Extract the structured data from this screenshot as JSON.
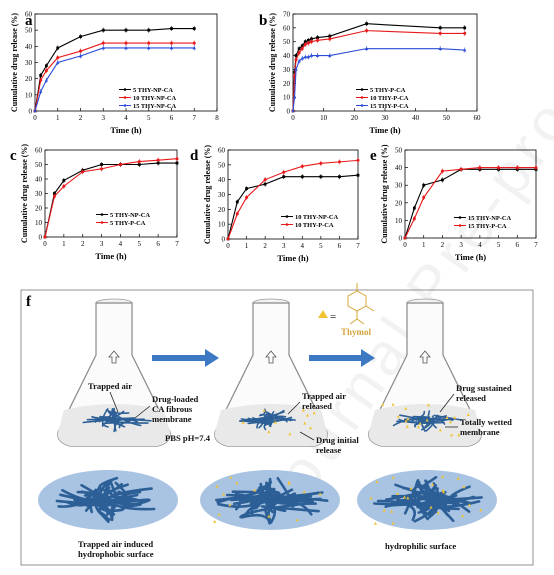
{
  "panels": [
    {
      "letter": "a",
      "xlabel": "Time (h)",
      "ylabel": "Cumulative drug release (%)",
      "xlim": [
        0,
        8
      ],
      "ylim": [
        0,
        60
      ],
      "xticks": [
        0,
        1,
        2,
        3,
        4,
        5,
        6,
        7,
        8
      ],
      "yticks": [
        0,
        10,
        20,
        30,
        40,
        50,
        60
      ]
    },
    {
      "letter": "b",
      "xlabel": "Time (h)",
      "ylabel": "Cumulative drug release (%)",
      "xlim": [
        0,
        60
      ],
      "ylim": [
        0,
        70
      ],
      "xticks": [
        0,
        10,
        20,
        30,
        40,
        50,
        60
      ],
      "yticks": [
        0,
        10,
        20,
        30,
        40,
        50,
        60,
        70
      ]
    },
    {
      "letter": "c",
      "xlabel": "Time (h)",
      "ylabel": "Cumulative drug release (%)",
      "xlim": [
        0,
        7
      ],
      "ylim": [
        0,
        60
      ],
      "xticks": [
        0,
        1,
        2,
        3,
        4,
        5,
        6,
        7
      ],
      "yticks": [
        0,
        10,
        20,
        30,
        40,
        50,
        60
      ]
    },
    {
      "letter": "d",
      "xlabel": "Time (h)",
      "ylabel": "Cumulative drug release (%)",
      "xlim": [
        0,
        7
      ],
      "ylim": [
        0,
        60
      ],
      "xticks": [
        0,
        1,
        2,
        3,
        4,
        5,
        6,
        7
      ],
      "yticks": [
        0,
        10,
        20,
        30,
        40,
        50,
        60
      ]
    },
    {
      "letter": "e",
      "xlabel": "Time (h)",
      "ylabel": "Cumulative drug release (%)",
      "xlim": [
        0,
        7
      ],
      "ylim": [
        0,
        50
      ],
      "xticks": [
        0,
        1,
        2,
        3,
        4,
        5,
        6,
        7
      ],
      "yticks": [
        0,
        10,
        20,
        30,
        40,
        50
      ]
    }
  ],
  "chart_data": [
    {
      "type": "line",
      "panel": "a",
      "x": [
        0,
        0.25,
        0.5,
        1,
        2,
        3,
        4,
        5,
        6,
        7
      ],
      "series": [
        {
          "name": "5 THY-NP-CA",
          "color": "#000000",
          "marker": "square",
          "values": [
            0,
            22,
            28,
            39,
            46,
            50,
            50,
            50,
            51,
            51
          ]
        },
        {
          "name": "10 THY-NP-CA",
          "color": "#e8191b",
          "marker": "circle",
          "values": [
            0,
            19,
            25,
            33,
            37,
            42,
            42,
            42,
            42,
            42
          ]
        },
        {
          "name": "15 THY-NP-CA",
          "color": "#2a4cd7",
          "marker": "triangle",
          "values": [
            0,
            12,
            19,
            30,
            34,
            39,
            39,
            39,
            39,
            39
          ]
        }
      ]
    },
    {
      "type": "line",
      "panel": "b",
      "x": [
        0,
        0.5,
        1,
        2,
        3,
        4,
        5,
        6,
        8,
        12,
        24,
        48,
        56
      ],
      "series": [
        {
          "name": "5 THY-P-CA",
          "color": "#000000",
          "marker": "square",
          "values": [
            0,
            28,
            40,
            45,
            47,
            50,
            51,
            52,
            53,
            54,
            63,
            60,
            60
          ]
        },
        {
          "name": "10 THY-P-CA",
          "color": "#e8191b",
          "marker": "circle",
          "values": [
            0,
            25,
            37,
            42,
            45,
            48,
            49,
            50,
            51,
            52,
            58,
            56,
            56
          ]
        },
        {
          "name": "15 THY-P-CA",
          "color": "#2a4cd7",
          "marker": "triangle",
          "values": [
            0,
            10,
            30,
            36,
            38,
            39,
            39,
            40,
            40,
            40,
            45,
            45,
            44
          ]
        }
      ]
    },
    {
      "type": "line",
      "panel": "c",
      "x": [
        0,
        0.5,
        1,
        2,
        3,
        4,
        5,
        6,
        7
      ],
      "series": [
        {
          "name": "5 THY-NP-CA",
          "color": "#000000",
          "marker": "square",
          "values": [
            0,
            30,
            39,
            46,
            50,
            50,
            50,
            51,
            51
          ]
        },
        {
          "name": "5 THY-P-CA",
          "color": "#e8191b",
          "marker": "circle",
          "values": [
            0,
            28,
            35,
            45,
            47,
            50,
            52,
            53,
            54
          ]
        }
      ]
    },
    {
      "type": "line",
      "panel": "d",
      "x": [
        0,
        0.5,
        1,
        2,
        3,
        4,
        5,
        6,
        7
      ],
      "series": [
        {
          "name": "10 THY-NP-CA",
          "color": "#000000",
          "marker": "square",
          "values": [
            0,
            25,
            34,
            37,
            42,
            42,
            42,
            42,
            43
          ]
        },
        {
          "name": "10 THY-P-CA",
          "color": "#e8191b",
          "marker": "circle",
          "values": [
            0,
            17,
            28,
            40,
            45,
            49,
            51,
            52,
            53
          ]
        }
      ]
    },
    {
      "type": "line",
      "panel": "e",
      "x": [
        0,
        0.5,
        1,
        2,
        3,
        4,
        5,
        6,
        7
      ],
      "series": [
        {
          "name": "15 THY-NP-CA",
          "color": "#000000",
          "marker": "square",
          "values": [
            0,
            17,
            30,
            33,
            39,
            39,
            39,
            39,
            39
          ]
        },
        {
          "name": "15 THY-P-CA",
          "color": "#e8191b",
          "marker": "circle",
          "values": [
            0,
            11,
            23,
            38,
            39,
            40,
            40,
            40,
            40
          ]
        }
      ]
    }
  ],
  "diagram": {
    "letter": "f",
    "thymol_label": "Thymol",
    "labels": {
      "trapped_air": "Trapped air",
      "drug_loaded_1": "Drug-loaded",
      "drug_loaded_2": "CA fibrous",
      "drug_loaded_3": "membrane",
      "pbs": "PBS pH=7.4",
      "air_released_1": "Trapped air",
      "air_released_2": "released",
      "drug_initial_1": "Drug initial",
      "drug_initial_2": "release",
      "sustained_1": "Drug sustained",
      "sustained_2": "released",
      "wetted_1": "Totally wetted",
      "wetted_2": "membrane",
      "hydrophobic_1": "Trapped air induced",
      "hydrophobic_2": "hydrophobic surface",
      "hydrophilic": "hydrophilic surface"
    },
    "colors": {
      "fiber": "#2d5f97",
      "arrow": "#3d78c2",
      "drop": "#f0c330",
      "ellipse": "#a9c4e2"
    }
  },
  "watermark": "Journal Pre-proof"
}
